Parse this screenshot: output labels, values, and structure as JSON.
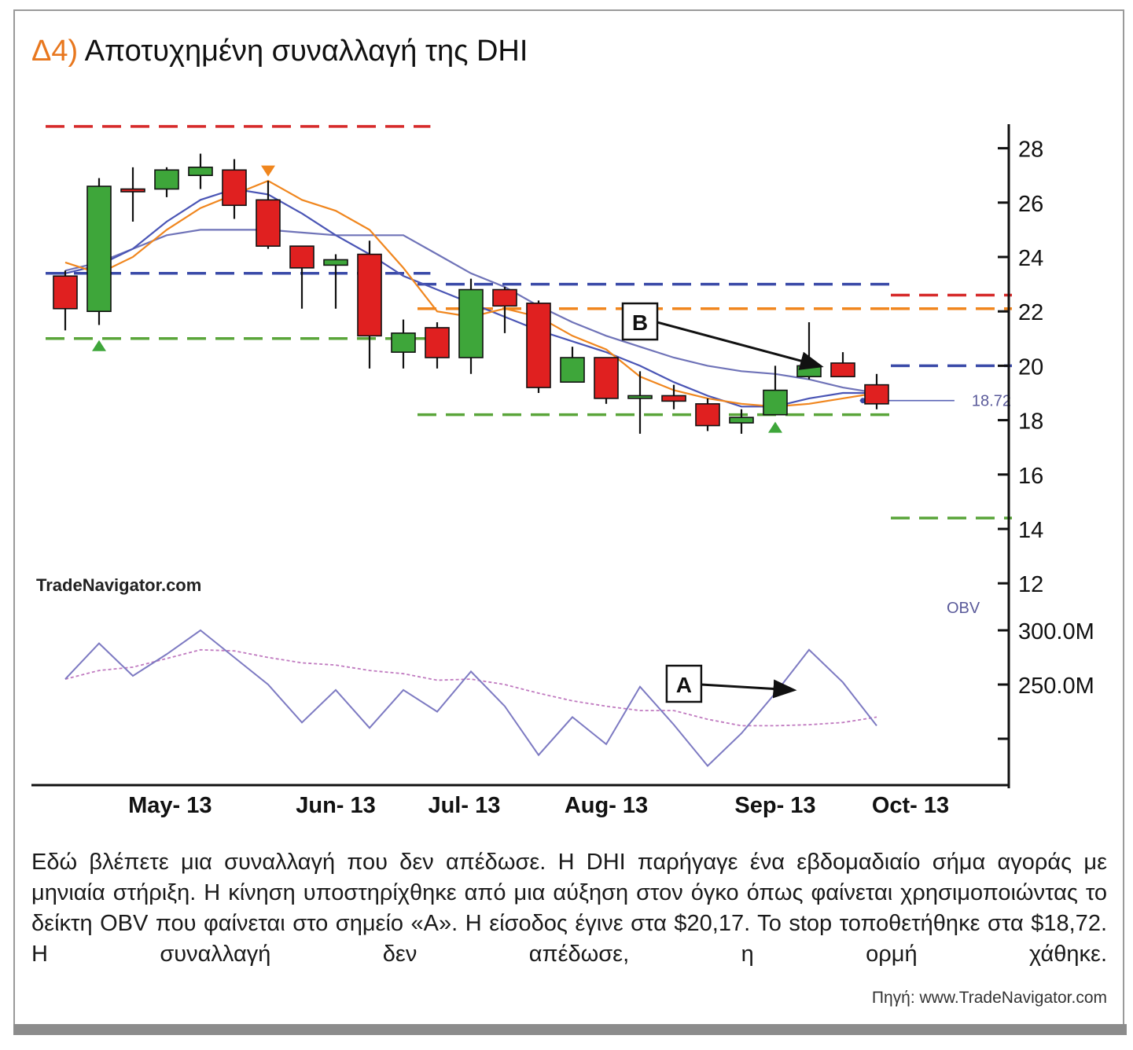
{
  "title": {
    "prefix": "Δ4)",
    "text": "Αποτυχημένη συναλλαγή της DHI"
  },
  "brand": "TradeNavigator.com",
  "caption": "Εδώ βλέπετε μια συναλλαγή που δεν απέδωσε. Η DHI παρήγαγε ένα εβδομαδιαίο σήμα αγοράς με μηνιαία στήριξη. Η κίνηση υποστηρίχθηκε από μια αύξηση στον όγκο όπως φαίνεται χρησιμοποιώντας το δείκτη OBV που φαίνεται στο σημείο «Α». Η είσοδος έγινε στα $20,17. Το stop τοποθετήθηκε στα $18,72. Η συναλλαγή δεν απέδωσε, η ορμή χάθηκε.",
  "source": "Πηγή: www.TradeNavigator.com",
  "chart_data": {
    "type": "candlestick",
    "price_axis": {
      "ticks": [
        12,
        14,
        16,
        18,
        20,
        22,
        24,
        26,
        28
      ],
      "range": [
        11.5,
        29
      ]
    },
    "obv_axis": {
      "label": "OBV",
      "ticks": [
        "300.0M",
        "250.0M"
      ],
      "tick_values": [
        300,
        250
      ]
    },
    "x_labels": [
      "May- 13",
      "Jun- 13",
      "Jul- 13",
      "Aug- 13",
      "Sep- 13",
      "Oct- 13"
    ],
    "x_label_weeks": [
      3.1,
      8.0,
      11.8,
      16.0,
      21.0,
      25.0
    ],
    "candles": [
      {
        "open": 23.3,
        "high": 23.5,
        "low": 21.3,
        "close": 22.1
      },
      {
        "open": 22.0,
        "high": 26.9,
        "low": 21.5,
        "close": 26.6
      },
      {
        "open": 26.5,
        "high": 27.3,
        "low": 25.3,
        "close": 26.4
      },
      {
        "open": 26.5,
        "high": 27.3,
        "low": 26.2,
        "close": 27.2
      },
      {
        "open": 27.0,
        "high": 27.8,
        "low": 26.5,
        "close": 27.3
      },
      {
        "open": 27.2,
        "high": 27.6,
        "low": 25.4,
        "close": 25.9
      },
      {
        "open": 26.1,
        "high": 26.8,
        "low": 24.3,
        "close": 24.4
      },
      {
        "open": 24.4,
        "high": 24.4,
        "low": 22.1,
        "close": 23.6
      },
      {
        "open": 23.7,
        "high": 24.1,
        "low": 22.1,
        "close": 23.9
      },
      {
        "open": 24.1,
        "high": 24.6,
        "low": 19.9,
        "close": 21.1
      },
      {
        "open": 20.5,
        "high": 21.7,
        "low": 19.9,
        "close": 21.2
      },
      {
        "open": 21.4,
        "high": 21.6,
        "low": 19.9,
        "close": 20.3
      },
      {
        "open": 20.3,
        "high": 23.2,
        "low": 19.7,
        "close": 22.8
      },
      {
        "open": 22.8,
        "high": 22.9,
        "low": 21.2,
        "close": 22.2
      },
      {
        "open": 22.3,
        "high": 22.4,
        "low": 19.0,
        "close": 19.2
      },
      {
        "open": 19.4,
        "high": 20.7,
        "low": 19.4,
        "close": 20.3
      },
      {
        "open": 20.3,
        "high": 20.3,
        "low": 18.6,
        "close": 18.8
      },
      {
        "open": 18.8,
        "high": 19.8,
        "low": 17.5,
        "close": 18.9
      },
      {
        "open": 18.9,
        "high": 19.3,
        "low": 18.4,
        "close": 18.7
      },
      {
        "open": 18.6,
        "high": 18.8,
        "low": 17.6,
        "close": 17.8
      },
      {
        "open": 17.9,
        "high": 18.4,
        "low": 17.5,
        "close": 18.1
      },
      {
        "open": 18.2,
        "high": 20.0,
        "low": 18.2,
        "close": 19.1
      },
      {
        "open": 19.6,
        "high": 21.6,
        "low": 19.5,
        "close": 20.0
      },
      {
        "open": 20.1,
        "high": 20.5,
        "low": 19.6,
        "close": 19.6
      },
      {
        "open": 19.3,
        "high": 19.7,
        "low": 18.4,
        "close": 18.6
      }
    ],
    "ma_short": [
      23.8,
      23.4,
      24.0,
      25.0,
      25.8,
      26.3,
      26.8,
      26.1,
      25.7,
      25.0,
      23.6,
      22.0,
      21.8,
      22.1,
      21.8,
      21.1,
      20.6,
      19.6,
      19.1,
      18.8,
      18.6,
      18.5,
      18.6,
      18.8,
      19.0
    ],
    "ma_mid": [
      23.4,
      23.7,
      24.3,
      25.3,
      26.1,
      26.5,
      26.3,
      25.6,
      24.8,
      24.1,
      23.3,
      22.8,
      22.3,
      21.8,
      21.3,
      20.9,
      20.5,
      20.0,
      19.4,
      18.9,
      18.5,
      18.5,
      18.8,
      19.0,
      19.0
    ],
    "ma_long": [
      23.5,
      23.8,
      24.3,
      24.8,
      25.0,
      25.0,
      25.0,
      24.9,
      24.8,
      24.8,
      24.8,
      24.1,
      23.4,
      22.9,
      22.2,
      21.6,
      21.1,
      20.7,
      20.3,
      20.0,
      19.8,
      19.7,
      19.5,
      19.2,
      19.0
    ],
    "levels": [
      {
        "price": 28.8,
        "color": "#d62a2a",
        "from": 0,
        "to": 10.8
      },
      {
        "price": 23.4,
        "color": "#3a4aa8",
        "from": 0,
        "to": 10.8
      },
      {
        "price": 21.0,
        "color": "#5aa53a",
        "from": 0,
        "to": 10.8
      },
      {
        "price": 23.0,
        "color": "#3a4aa8",
        "from": 11,
        "to": 24.5
      },
      {
        "price": 22.1,
        "color": "#f0861e",
        "from": 11,
        "to": 24.5
      },
      {
        "price": 18.2,
        "color": "#5aa53a",
        "from": 11,
        "to": 24.5
      },
      {
        "price": 22.6,
        "color": "#d62a2a",
        "from": 25,
        "to": 28
      },
      {
        "price": 22.1,
        "color": "#f0861e",
        "from": 25,
        "to": 28
      },
      {
        "price": 20.0,
        "color": "#3a4aa8",
        "from": 25,
        "to": 28
      },
      {
        "price": 14.4,
        "color": "#5aa53a",
        "from": 25,
        "to": 28
      }
    ],
    "stop_line": {
      "price": 18.72,
      "label": "18.72",
      "from": 23.5,
      "to": 26.3
    },
    "buy_signals": [
      {
        "week": 1,
        "price": 21.0
      },
      {
        "week": 21,
        "price": 18.0
      }
    ],
    "sell_signals": [
      {
        "week": 6,
        "price": 26.9
      }
    ],
    "obv": [
      255,
      288,
      258,
      278,
      300,
      275,
      250,
      215,
      245,
      210,
      245,
      225,
      262,
      230,
      185,
      220,
      195,
      248,
      213,
      175,
      205,
      242,
      282,
      252,
      212
    ],
    "obv_signal": [
      255,
      263,
      266,
      274,
      282,
      281,
      275,
      270,
      268,
      263,
      260,
      254,
      255,
      250,
      242,
      235,
      230,
      226,
      226,
      218,
      212,
      212,
      213,
      215,
      220
    ],
    "annotations": [
      {
        "label": "B",
        "from_week": 17,
        "from_price": 21.6,
        "to_week": 22.3,
        "to_price": 20.0
      },
      {
        "label": "A",
        "from_week": 18.3,
        "from_obv": 250,
        "to_week": 21.5,
        "to_obv": 245
      }
    ],
    "colors": {
      "bull": "#3ea63a",
      "bear": "#e02020",
      "ma_short": "#f0861e",
      "ma_mid": "#4a55b5",
      "ma_long": "#6f73b8",
      "obv": "#7d7ac2",
      "obv_signal": "#c07ac0"
    }
  }
}
